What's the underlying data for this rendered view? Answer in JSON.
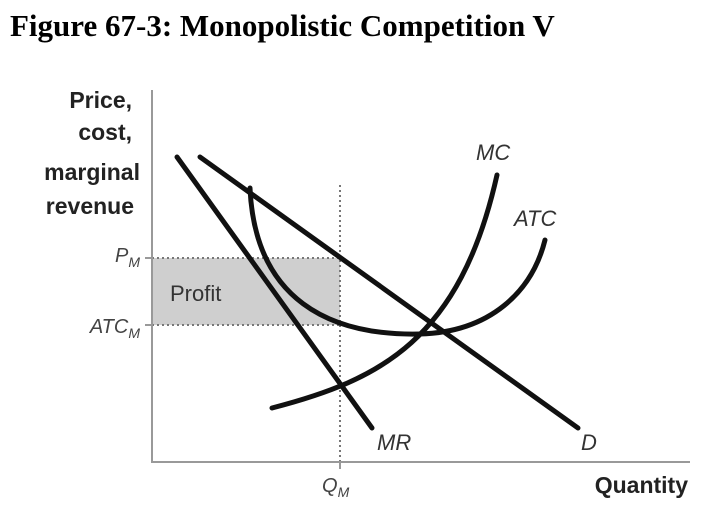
{
  "header": {
    "title": "Figure 67-3: Monopolistic Competition V"
  },
  "axes": {
    "y_label": [
      "Price,",
      "cost,",
      "marginal",
      "revenue"
    ],
    "x_label": "Quantity"
  },
  "ticks": {
    "price": {
      "main": "P",
      "sub": "M"
    },
    "atc": {
      "main": "ATC",
      "sub": "M"
    },
    "quantity": {
      "main": "Q",
      "sub": "M"
    }
  },
  "region": {
    "label": "Profit"
  },
  "curves": {
    "mc": "MC",
    "atc": "ATC",
    "mr": "MR",
    "d": "D"
  }
}
